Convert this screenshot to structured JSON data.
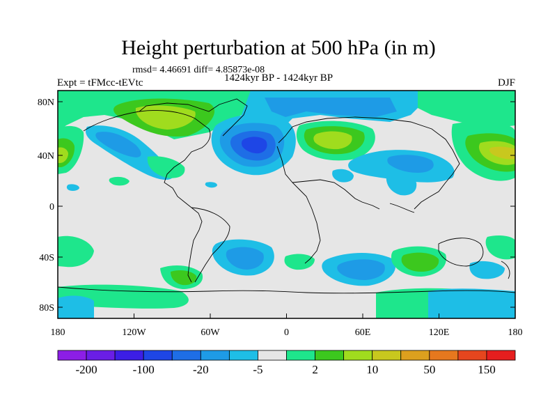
{
  "title": "Height perturbation at 500 hPa (in m)",
  "stats": "rmsd= 4.46691 diff= 4.85873e-08",
  "experiment": "Expt = tFMcc-tEVtc",
  "period": "1424kyr BP - 1424kyr BP",
  "season": "DJF",
  "axes": {
    "y_ticks": [
      "80N",
      "40N",
      "0",
      "40S",
      "80S"
    ],
    "x_ticks": [
      "180",
      "120W",
      "60W",
      "0",
      "60E",
      "120E",
      "180"
    ]
  },
  "colorbar": {
    "colors": [
      "#8c1ee6",
      "#6a1ee6",
      "#3c1ee6",
      "#1e46e6",
      "#1e6ee6",
      "#1e9be6",
      "#1ebee6",
      "#e6e6e6",
      "#1ee68c",
      "#3cc81e",
      "#a0dc1e",
      "#c8c81e",
      "#dca01e",
      "#e6781e",
      "#e6461e",
      "#e61e1e"
    ],
    "labels": [
      "-200",
      "-100",
      "-20",
      "-5",
      "2",
      "10",
      "50",
      "150"
    ]
  },
  "colors": {
    "neutral": "#e6e6e6",
    "neg_light": "#1ebee6",
    "neg_mid": "#1e9be6",
    "neg_dark": "#1e6ee6",
    "neg_deep": "#1e46e6",
    "pos_light": "#1ee68c",
    "pos_mid": "#3cc81e",
    "pos_yellow": "#a0dc1e",
    "pos_olive": "#c8c81e"
  }
}
